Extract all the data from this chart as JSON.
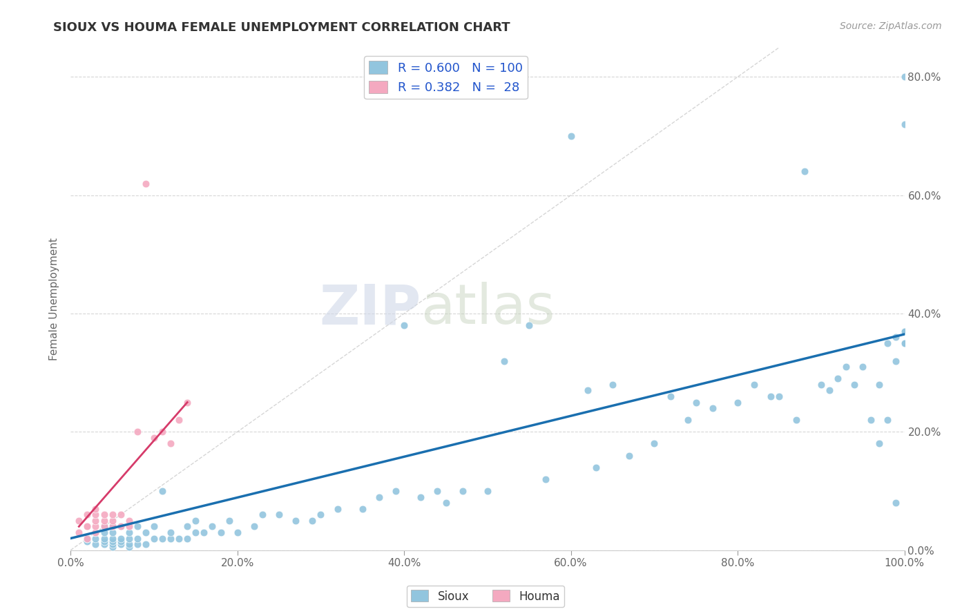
{
  "title": "SIOUX VS HOUMA FEMALE UNEMPLOYMENT CORRELATION CHART",
  "source": "Source: ZipAtlas.com",
  "ylabel": "Female Unemployment",
  "xlim": [
    0.0,
    1.0
  ],
  "ylim": [
    0.0,
    0.85
  ],
  "x_tick_labels": [
    "0.0%",
    "20.0%",
    "40.0%",
    "60.0%",
    "80.0%",
    "100.0%"
  ],
  "x_tick_vals": [
    0.0,
    0.2,
    0.4,
    0.6,
    0.8,
    1.0
  ],
  "y_tick_labels": [
    "0.0%",
    "20.0%",
    "40.0%",
    "60.0%",
    "80.0%"
  ],
  "y_tick_vals": [
    0.0,
    0.2,
    0.4,
    0.6,
    0.8
  ],
  "sioux_R": 0.6,
  "sioux_N": 100,
  "houma_R": 0.382,
  "houma_N": 28,
  "sioux_color": "#92c5de",
  "houma_color": "#f4a9c0",
  "sioux_line_color": "#1a6faf",
  "houma_line_color": "#d63b6a",
  "diagonal_color": "#cccccc",
  "watermark_zip": "ZIP",
  "watermark_atlas": "atlas",
  "background_color": "#ffffff",
  "sioux_x": [
    0.02,
    0.02,
    0.03,
    0.03,
    0.03,
    0.04,
    0.04,
    0.04,
    0.04,
    0.04,
    0.05,
    0.05,
    0.05,
    0.05,
    0.05,
    0.05,
    0.06,
    0.06,
    0.06,
    0.06,
    0.07,
    0.07,
    0.07,
    0.07,
    0.08,
    0.08,
    0.08,
    0.09,
    0.09,
    0.1,
    0.1,
    0.11,
    0.11,
    0.12,
    0.12,
    0.13,
    0.14,
    0.14,
    0.15,
    0.15,
    0.16,
    0.17,
    0.18,
    0.19,
    0.2,
    0.22,
    0.23,
    0.25,
    0.27,
    0.29,
    0.3,
    0.32,
    0.35,
    0.37,
    0.39,
    0.4,
    0.42,
    0.44,
    0.45,
    0.47,
    0.5,
    0.52,
    0.55,
    0.57,
    0.6,
    0.62,
    0.63,
    0.65,
    0.67,
    0.7,
    0.72,
    0.74,
    0.75,
    0.77,
    0.8,
    0.82,
    0.84,
    0.85,
    0.87,
    0.88,
    0.9,
    0.91,
    0.92,
    0.93,
    0.94,
    0.95,
    0.96,
    0.97,
    0.97,
    0.98,
    0.98,
    0.99,
    0.99,
    0.99,
    1.0,
    1.0,
    1.0,
    1.0,
    1.0,
    1.0
  ],
  "sioux_y": [
    0.015,
    0.02,
    0.01,
    0.02,
    0.03,
    0.01,
    0.015,
    0.02,
    0.03,
    0.04,
    0.005,
    0.01,
    0.015,
    0.02,
    0.03,
    0.04,
    0.01,
    0.015,
    0.02,
    0.04,
    0.005,
    0.01,
    0.02,
    0.03,
    0.01,
    0.02,
    0.04,
    0.01,
    0.03,
    0.02,
    0.04,
    0.02,
    0.1,
    0.02,
    0.03,
    0.02,
    0.02,
    0.04,
    0.03,
    0.05,
    0.03,
    0.04,
    0.03,
    0.05,
    0.03,
    0.04,
    0.06,
    0.06,
    0.05,
    0.05,
    0.06,
    0.07,
    0.07,
    0.09,
    0.1,
    0.38,
    0.09,
    0.1,
    0.08,
    0.1,
    0.1,
    0.32,
    0.38,
    0.12,
    0.7,
    0.27,
    0.14,
    0.28,
    0.16,
    0.18,
    0.26,
    0.22,
    0.25,
    0.24,
    0.25,
    0.28,
    0.26,
    0.26,
    0.22,
    0.64,
    0.28,
    0.27,
    0.29,
    0.31,
    0.28,
    0.31,
    0.22,
    0.28,
    0.18,
    0.35,
    0.22,
    0.32,
    0.36,
    0.08,
    0.35,
    0.37,
    0.8,
    0.72,
    0.35,
    0.37
  ],
  "houma_x": [
    0.01,
    0.01,
    0.02,
    0.02,
    0.02,
    0.02,
    0.03,
    0.03,
    0.03,
    0.03,
    0.03,
    0.04,
    0.04,
    0.04,
    0.05,
    0.05,
    0.05,
    0.06,
    0.06,
    0.07,
    0.07,
    0.08,
    0.09,
    0.1,
    0.11,
    0.12,
    0.13,
    0.14
  ],
  "houma_y": [
    0.03,
    0.05,
    0.02,
    0.04,
    0.04,
    0.06,
    0.03,
    0.04,
    0.05,
    0.06,
    0.07,
    0.04,
    0.05,
    0.06,
    0.04,
    0.05,
    0.06,
    0.04,
    0.06,
    0.04,
    0.05,
    0.2,
    0.62,
    0.19,
    0.2,
    0.18,
    0.22,
    0.25
  ],
  "sioux_line_x": [
    0.0,
    1.0
  ],
  "sioux_line_y": [
    0.02,
    0.365
  ],
  "houma_line_x": [
    0.01,
    0.14
  ],
  "houma_line_y": [
    0.04,
    0.25
  ]
}
